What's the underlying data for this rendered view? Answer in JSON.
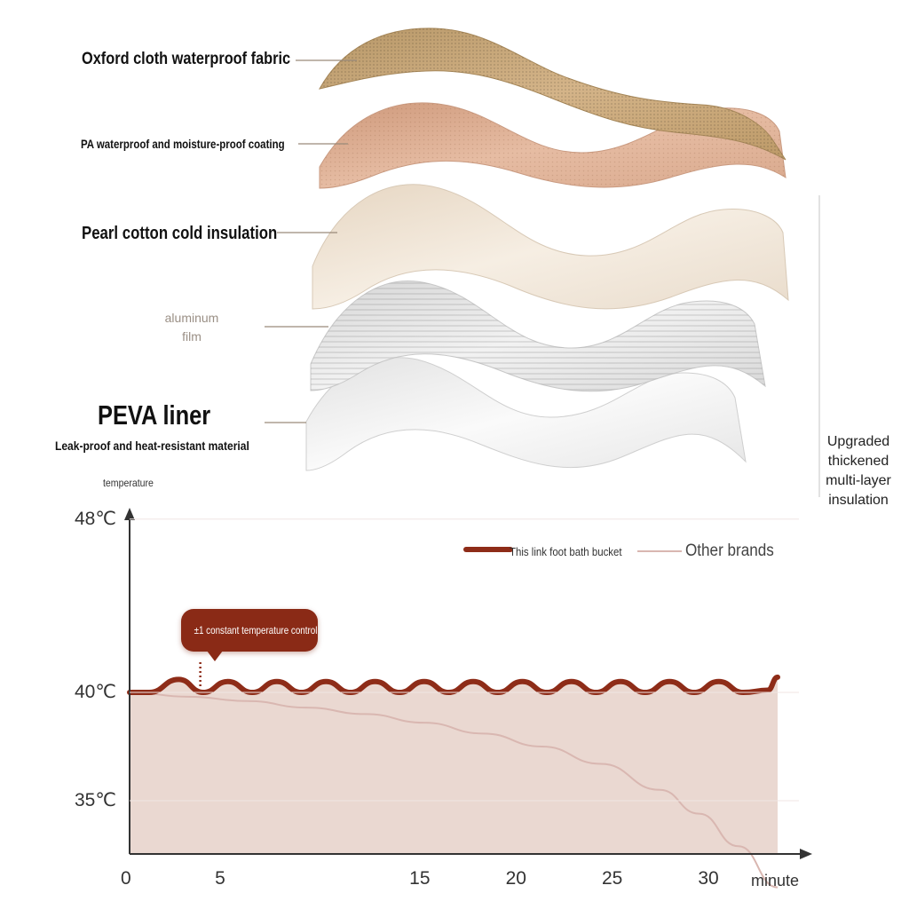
{
  "layers": {
    "oxford": "Oxford cloth waterproof fabric",
    "pa": "PA waterproof and moisture-proof coating",
    "pearl": "Pearl cotton cold insulation",
    "aluminum": "aluminum\nfilm",
    "peva": "PEVA liner",
    "peva_sub": "Leak-proof and heat-resistant material",
    "upgraded": "Upgraded\nthickened\nmulti-layer\ninsulation"
  },
  "colors": {
    "oxford_fabric": "#c9a877",
    "pa_coating": "#dcae93",
    "pearl_cotton": "#efe4d6",
    "aluminum": "#e3e3e3",
    "peva": "#f1f1f1",
    "series_main": "#8e2c18",
    "series_other": "#d9b7b1",
    "fill": "#ead8d1"
  },
  "chart_data": {
    "type": "line",
    "ylabel": "temperature",
    "xlabel": "minute",
    "y_ticks": [
      "48℃",
      "40℃",
      "35℃"
    ],
    "y_tick_values": [
      48,
      40,
      35
    ],
    "x_ticks": [
      "0",
      "5",
      "15",
      "20",
      "25",
      "30"
    ],
    "x_tick_values": [
      0,
      5,
      15,
      20,
      25,
      30
    ],
    "xlim": [
      0,
      33
    ],
    "legend_position": "top-right",
    "series": [
      {
        "name": "This link foot bath bucket",
        "color": "#8e2c18",
        "x": [
          0,
          1,
          2.5,
          3.75,
          5,
          6.25,
          7.5,
          8.75,
          10,
          11.25,
          12.5,
          13.75,
          15,
          16.25,
          17.5,
          18.75,
          20,
          21.25,
          22.5,
          23.75,
          25,
          26.25,
          27.5,
          28.75,
          30,
          31.25,
          32.5,
          33
        ],
        "y": [
          40,
          40,
          40.6,
          40,
          40.5,
          40,
          40.5,
          40,
          40.5,
          40,
          40.5,
          40,
          40.5,
          40,
          40.5,
          40,
          40.5,
          40,
          40.5,
          40,
          40.5,
          40,
          40.5,
          40,
          40.5,
          40,
          40.1,
          40.7
        ]
      },
      {
        "name": "Other brands",
        "color": "#d9b7b1",
        "x": [
          0,
          3,
          6,
          9,
          12,
          15,
          18,
          21,
          24,
          27,
          29,
          31,
          33
        ],
        "y": [
          40,
          39.8,
          39.6,
          39.3,
          39.0,
          38.6,
          38.1,
          37.5,
          36.7,
          35.5,
          34.4,
          32.9,
          31
        ]
      }
    ],
    "annotation": {
      "text": "±1 constant temperature control",
      "x": 3.6,
      "y": 40
    }
  }
}
